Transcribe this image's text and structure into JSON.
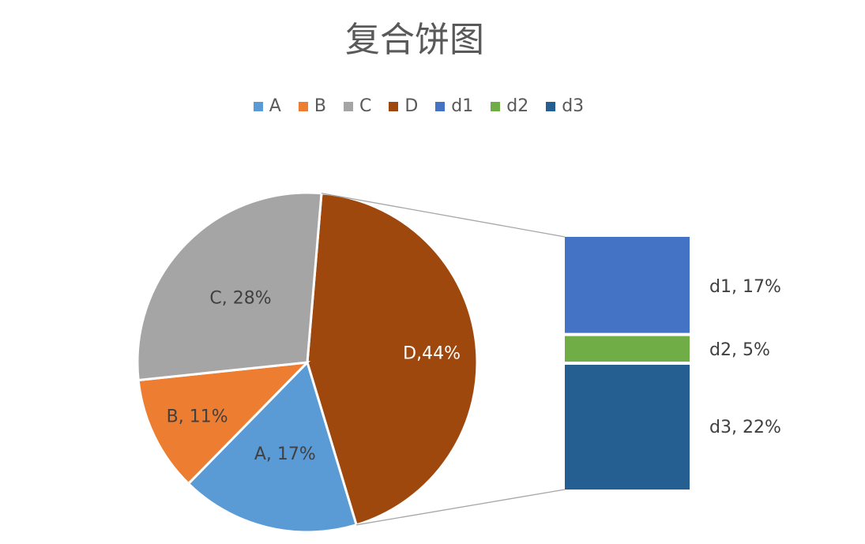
{
  "chart_data": {
    "type": "pie",
    "subtype": "bar-of-pie",
    "title": "复合饼图",
    "legend_position": "top",
    "legend": [
      {
        "name": "A",
        "color": "#5B9BD5"
      },
      {
        "name": "B",
        "color": "#ED7D31"
      },
      {
        "name": "C",
        "color": "#A5A5A5"
      },
      {
        "name": "D",
        "color": "#9E480E"
      },
      {
        "name": "d1",
        "color": "#4472C4"
      },
      {
        "name": "d2",
        "color": "#70AD47"
      },
      {
        "name": "d3",
        "color": "#255E91"
      }
    ],
    "pie_slices": [
      {
        "name": "A",
        "value": 17,
        "label": "A, 17%",
        "color": "#5B9BD5"
      },
      {
        "name": "B",
        "value": 11,
        "label": "B, 11%",
        "color": "#ED7D31"
      },
      {
        "name": "C",
        "value": 28,
        "label": "C, 28%",
        "color": "#A5A5A5"
      },
      {
        "name": "D",
        "value": 44,
        "label": "D,44%",
        "color": "#9E480E"
      }
    ],
    "bar_segments": [
      {
        "name": "d1",
        "value": 17,
        "label": "d1, 17%",
        "color": "#4472C4"
      },
      {
        "name": "d2",
        "value": 5,
        "label": "d2, 5%",
        "color": "#70AD47"
      },
      {
        "name": "d3",
        "value": 22,
        "label": "d3, 22%",
        "color": "#255E91"
      }
    ]
  }
}
